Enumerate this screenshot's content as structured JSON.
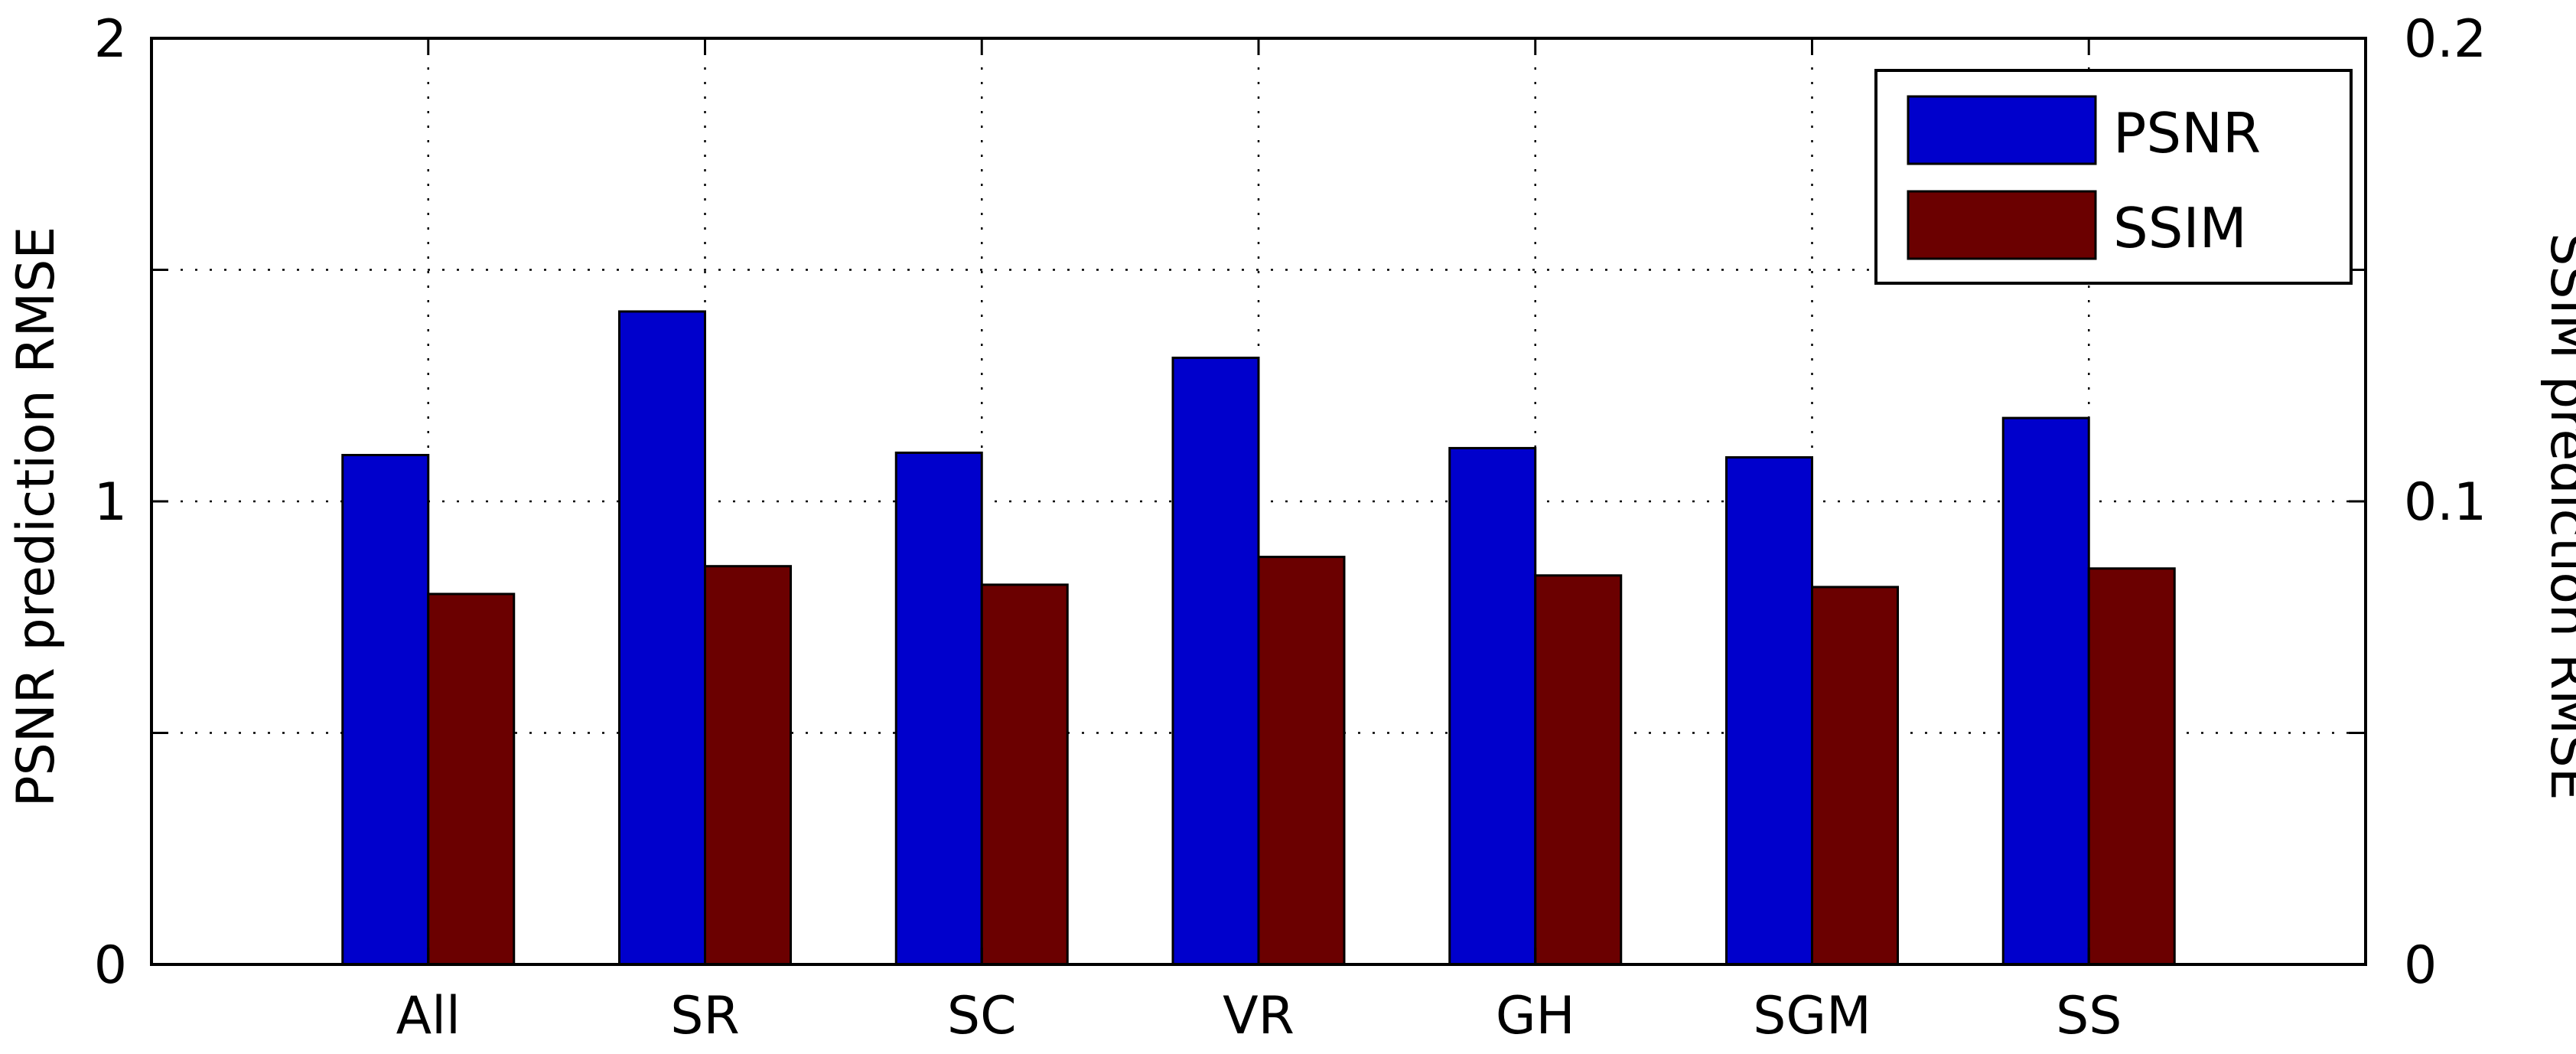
{
  "chart_data": {
    "type": "bar",
    "title": "",
    "categories": [
      "All",
      "SR",
      "SC",
      "VR",
      "GH",
      "SGM",
      "SS"
    ],
    "series": [
      {
        "name": "PSNR",
        "axis": "left",
        "color": "#0000cc",
        "values": [
          1.1,
          1.41,
          1.105,
          1.31,
          1.115,
          1.095,
          1.18
        ]
      },
      {
        "name": "SSIM",
        "axis": "right",
        "color": "#6b0000",
        "values": [
          0.08,
          0.086,
          0.082,
          0.088,
          0.084,
          0.0815,
          0.0855
        ]
      }
    ],
    "ylabel": "PSNR prediction RMSE",
    "ylabel_right": "SSIM prediction RMSE",
    "ylim": [
      0,
      2
    ],
    "ylim_right": [
      0,
      0.2
    ],
    "yticks": [
      0,
      1,
      2
    ],
    "yticks_right": [
      "0",
      "0.1",
      "0.2"
    ],
    "grid": true,
    "grid_style": "dotted",
    "legend_position": "top-right"
  }
}
